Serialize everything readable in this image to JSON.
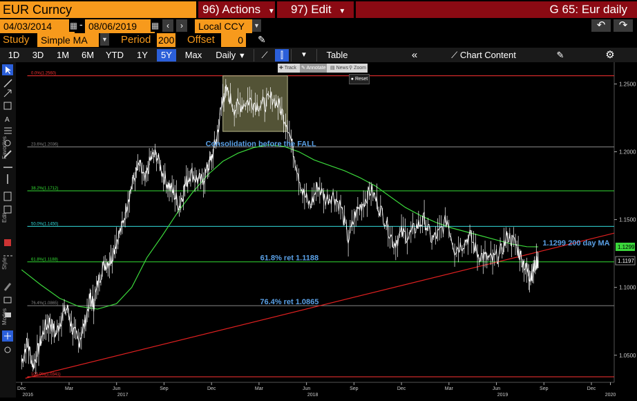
{
  "header": {
    "ticker": "EUR Curncy",
    "actions_label": "96) Actions",
    "edit_label": "97) Edit",
    "chart_title": "G 65: Eur daily"
  },
  "controls": {
    "start_date": "04/03/2014",
    "end_date": "08/06/2019",
    "currency": "Local CCY",
    "study_label": "Study",
    "study_value": "Simple MA",
    "period_label": "Period",
    "period_value": "200",
    "offset_label": "Offset",
    "offset_value": "0"
  },
  "tabs": [
    "1D",
    "3D",
    "1M",
    "6M",
    "YTD",
    "1Y",
    "5Y",
    "Max"
  ],
  "active_tab": "5Y",
  "toolbar": {
    "frequency": "Daily",
    "table_label": "Table",
    "chart_content_label": "Chart Content"
  },
  "mini_toolbar": {
    "track": "Track",
    "annotate": "Annotate",
    "news": "News",
    "zoom": "Zoom",
    "reset": "Reset"
  },
  "sidebar_sections": [
    "Favorites",
    "Edit",
    "Style",
    "Modes"
  ],
  "colors": {
    "amber": "#f79a1c",
    "price": "#ffffff",
    "ma": "#3bd83b",
    "trend": "#e02020",
    "fib": "#ff3333",
    "annotation": "#5aa0e6",
    "active_tab": "#2b5fd9"
  },
  "chart_data": {
    "type": "line",
    "ylim": [
      1.03,
      1.265
    ],
    "y_ticks": [
      1.05,
      1.1,
      1.15,
      1.2,
      1.25
    ],
    "y_tick_labels": [
      "1.0500",
      "1.1000",
      "1.1500",
      "1.2000",
      "1.2500"
    ],
    "x_ticks": [
      {
        "label": "Dec",
        "year": "2016",
        "t": 0.0
      },
      {
        "label": "Mar",
        "year": "",
        "t": 0.25
      },
      {
        "label": "Jun",
        "year": "2017",
        "t": 0.5
      },
      {
        "label": "Sep",
        "year": "",
        "t": 0.75
      },
      {
        "label": "Dec",
        "year": "",
        "t": 1.0
      },
      {
        "label": "Mar",
        "year": "",
        "t": 1.25
      },
      {
        "label": "Jun",
        "year": "2018",
        "t": 1.5
      },
      {
        "label": "Sep",
        "year": "",
        "t": 1.75
      },
      {
        "label": "Dec",
        "year": "",
        "t": 2.0
      },
      {
        "label": "Mar",
        "year": "",
        "t": 2.25
      },
      {
        "label": "Jun",
        "year": "2019",
        "t": 2.5
      },
      {
        "label": "Sep",
        "year": "",
        "t": 2.75
      },
      {
        "label": "Dec",
        "year": "",
        "t": 3.0
      },
      {
        "label": "",
        "year": "2020",
        "t": 3.1
      }
    ],
    "t_range": [
      -0.03,
      3.12
    ],
    "series": [
      {
        "name": "EUR Curncy",
        "values": [
          [
            0.0,
            1.045
          ],
          [
            0.03,
            1.06
          ],
          [
            0.06,
            1.042
          ],
          [
            0.09,
            1.055
          ],
          [
            0.12,
            1.07
          ],
          [
            0.15,
            1.075
          ],
          [
            0.18,
            1.065
          ],
          [
            0.21,
            1.078
          ],
          [
            0.24,
            1.085
          ],
          [
            0.27,
            1.068
          ],
          [
            0.3,
            1.06
          ],
          [
            0.33,
            1.072
          ],
          [
            0.36,
            1.092
          ],
          [
            0.38,
            1.088
          ],
          [
            0.41,
            1.108
          ],
          [
            0.44,
            1.118
          ],
          [
            0.47,
            1.12
          ],
          [
            0.5,
            1.135
          ],
          [
            0.53,
            1.145
          ],
          [
            0.56,
            1.165
          ],
          [
            0.59,
            1.18
          ],
          [
            0.62,
            1.19
          ],
          [
            0.65,
            1.178
          ],
          [
            0.68,
            1.195
          ],
          [
            0.71,
            1.198
          ],
          [
            0.74,
            1.185
          ],
          [
            0.77,
            1.176
          ],
          [
            0.8,
            1.17
          ],
          [
            0.83,
            1.16
          ],
          [
            0.86,
            1.175
          ],
          [
            0.89,
            1.185
          ],
          [
            0.92,
            1.18
          ],
          [
            0.95,
            1.178
          ],
          [
            0.98,
            1.188
          ],
          [
            1.0,
            1.195
          ],
          [
            1.03,
            1.212
          ],
          [
            1.06,
            1.24
          ],
          [
            1.08,
            1.245
          ],
          [
            1.12,
            1.232
          ],
          [
            1.16,
            1.235
          ],
          [
            1.2,
            1.238
          ],
          [
            1.24,
            1.235
          ],
          [
            1.28,
            1.235
          ],
          [
            1.32,
            1.24
          ],
          [
            1.36,
            1.233
          ],
          [
            1.4,
            1.22
          ],
          [
            1.44,
            1.195
          ],
          [
            1.48,
            1.17
          ],
          [
            1.52,
            1.16
          ],
          [
            1.56,
            1.175
          ],
          [
            1.6,
            1.165
          ],
          [
            1.64,
            1.168
          ],
          [
            1.68,
            1.16
          ],
          [
            1.72,
            1.135
          ],
          [
            1.76,
            1.155
          ],
          [
            1.8,
            1.163
          ],
          [
            1.84,
            1.172
          ],
          [
            1.88,
            1.16
          ],
          [
            1.92,
            1.148
          ],
          [
            1.96,
            1.132
          ],
          [
            2.0,
            1.14
          ],
          [
            2.04,
            1.138
          ],
          [
            2.08,
            1.145
          ],
          [
            2.12,
            1.15
          ],
          [
            2.16,
            1.135
          ],
          [
            2.2,
            1.14
          ],
          [
            2.24,
            1.15
          ],
          [
            2.28,
            1.128
          ],
          [
            2.32,
            1.132
          ],
          [
            2.36,
            1.138
          ],
          [
            2.4,
            1.125
          ],
          [
            2.44,
            1.122
          ],
          [
            2.48,
            1.12
          ],
          [
            2.52,
            1.125
          ],
          [
            2.56,
            1.138
          ],
          [
            2.6,
            1.132
          ],
          [
            2.63,
            1.122
          ],
          [
            2.66,
            1.112
          ],
          [
            2.68,
            1.108
          ],
          [
            2.7,
            1.115
          ],
          [
            2.72,
            1.12
          ]
        ]
      },
      {
        "name": "200 day MA",
        "values": [
          [
            0.0,
            1.113
          ],
          [
            0.1,
            1.102
          ],
          [
            0.2,
            1.092
          ],
          [
            0.3,
            1.086
          ],
          [
            0.4,
            1.084
          ],
          [
            0.5,
            1.088
          ],
          [
            0.58,
            1.1
          ],
          [
            0.66,
            1.122
          ],
          [
            0.74,
            1.138
          ],
          [
            0.82,
            1.155
          ],
          [
            0.9,
            1.17
          ],
          [
            0.98,
            1.183
          ],
          [
            1.06,
            1.193
          ],
          [
            1.14,
            1.199
          ],
          [
            1.22,
            1.203
          ],
          [
            1.3,
            1.205
          ],
          [
            1.38,
            1.204
          ],
          [
            1.46,
            1.2
          ],
          [
            1.54,
            1.194
          ],
          [
            1.62,
            1.19
          ],
          [
            1.7,
            1.186
          ],
          [
            1.78,
            1.181
          ],
          [
            1.86,
            1.175
          ],
          [
            1.94,
            1.167
          ],
          [
            2.02,
            1.159
          ],
          [
            2.1,
            1.153
          ],
          [
            2.18,
            1.148
          ],
          [
            2.26,
            1.144
          ],
          [
            2.34,
            1.141
          ],
          [
            2.42,
            1.138
          ],
          [
            2.5,
            1.135
          ],
          [
            2.58,
            1.132
          ],
          [
            2.66,
            1.13
          ],
          [
            2.72,
            1.1299
          ]
        ]
      }
    ],
    "trend_line": [
      [
        0.02,
        1.033
      ],
      [
        3.12,
        1.14
      ]
    ],
    "consolidation_box": {
      "t": [
        1.06,
        1.4
      ],
      "y": [
        1.215,
        1.256
      ]
    },
    "fib_levels": [
      {
        "label": "0.0%(1.2560)",
        "value": 1.256,
        "color": "#ff3333"
      },
      {
        "label": "23.6%(1.2036)",
        "value": 1.2036,
        "color": "#888888"
      },
      {
        "label": "38.2%(1.1712)",
        "value": 1.1712,
        "color": "#33dd33"
      },
      {
        "label": "50.0%(1.1450)",
        "value": 1.145,
        "color": "#33dddd"
      },
      {
        "label": "61.8%(1.1188)",
        "value": 1.1188,
        "color": "#33dd33"
      },
      {
        "label": "76.4%(1.0865)",
        "value": 1.0865,
        "color": "#888888"
      },
      {
        "label": "100.0%(1.0341)",
        "value": 1.0341,
        "color": "#ff3333"
      }
    ],
    "annotations": [
      {
        "text": "Consolidation before the FALL",
        "t": 1.26,
        "y": 1.204
      },
      {
        "text": "61.8% ret 1.1188",
        "t": 1.41,
        "y": 1.12
      },
      {
        "text": "76.4% ret 1.0865",
        "t": 1.41,
        "y": 1.0875
      },
      {
        "text": "1.1299 200 day MA",
        "t": 2.92,
        "y": 1.131
      }
    ],
    "last_price_tags": [
      {
        "text": "1.1299",
        "value": 1.1299,
        "bg": "#3bd83b",
        "fg": "#000000"
      },
      {
        "text": "1.1197",
        "value": 1.1197,
        "bg": "#000000",
        "fg": "#ffffff"
      }
    ]
  }
}
